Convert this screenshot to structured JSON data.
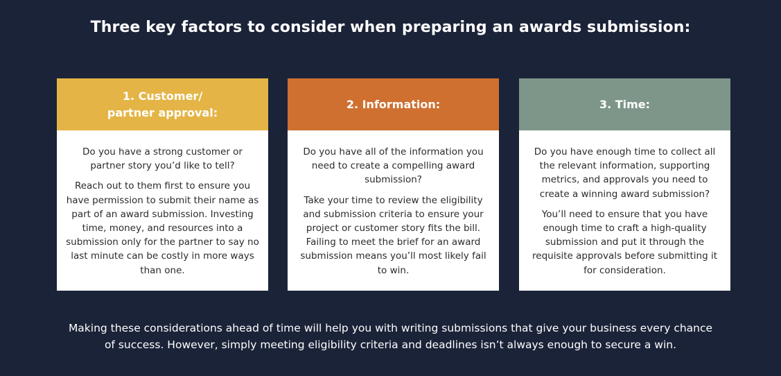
{
  "title": "Three key factors to consider when preparing an awards submission:",
  "colors": {
    "background": "#1b2338",
    "card_1_header": "#e4b546",
    "card_2_header": "#cf7030",
    "card_3_header": "#7e968a"
  },
  "cards": [
    {
      "heading": "1. Customer/\npartner approval:",
      "question": "Do you have a strong customer or partner story you’d like to tell?",
      "detail": "Reach out to them first to ensure you have permission to submit their name as part of an award submission. Investing time, money, and resources into a submission only for the partner to say no last minute can be costly in more ways than one."
    },
    {
      "heading": "2. Information:",
      "question": "Do you have all of the information you need to create a compelling award submission?",
      "detail": "Take your time to review the eligibility and submission criteria to ensure your project or customer story fits the bill. Failing to meet the brief for an award submission means you’ll most likely fail to win."
    },
    {
      "heading": "3. Time:",
      "question": "Do you have enough time to collect all the relevant information, supporting metrics, and approvals you need to create a winning award submission?",
      "detail": "You’ll need to ensure that you have enough time to craft a high-quality submission and put it through the requisite approvals before submitting it for consideration."
    }
  ],
  "footer": "Making these considerations ahead of time will help you with writing submissions that give your business every chance of success. However, simply meeting eligibility criteria and deadlines isn’t always enough to secure a win."
}
